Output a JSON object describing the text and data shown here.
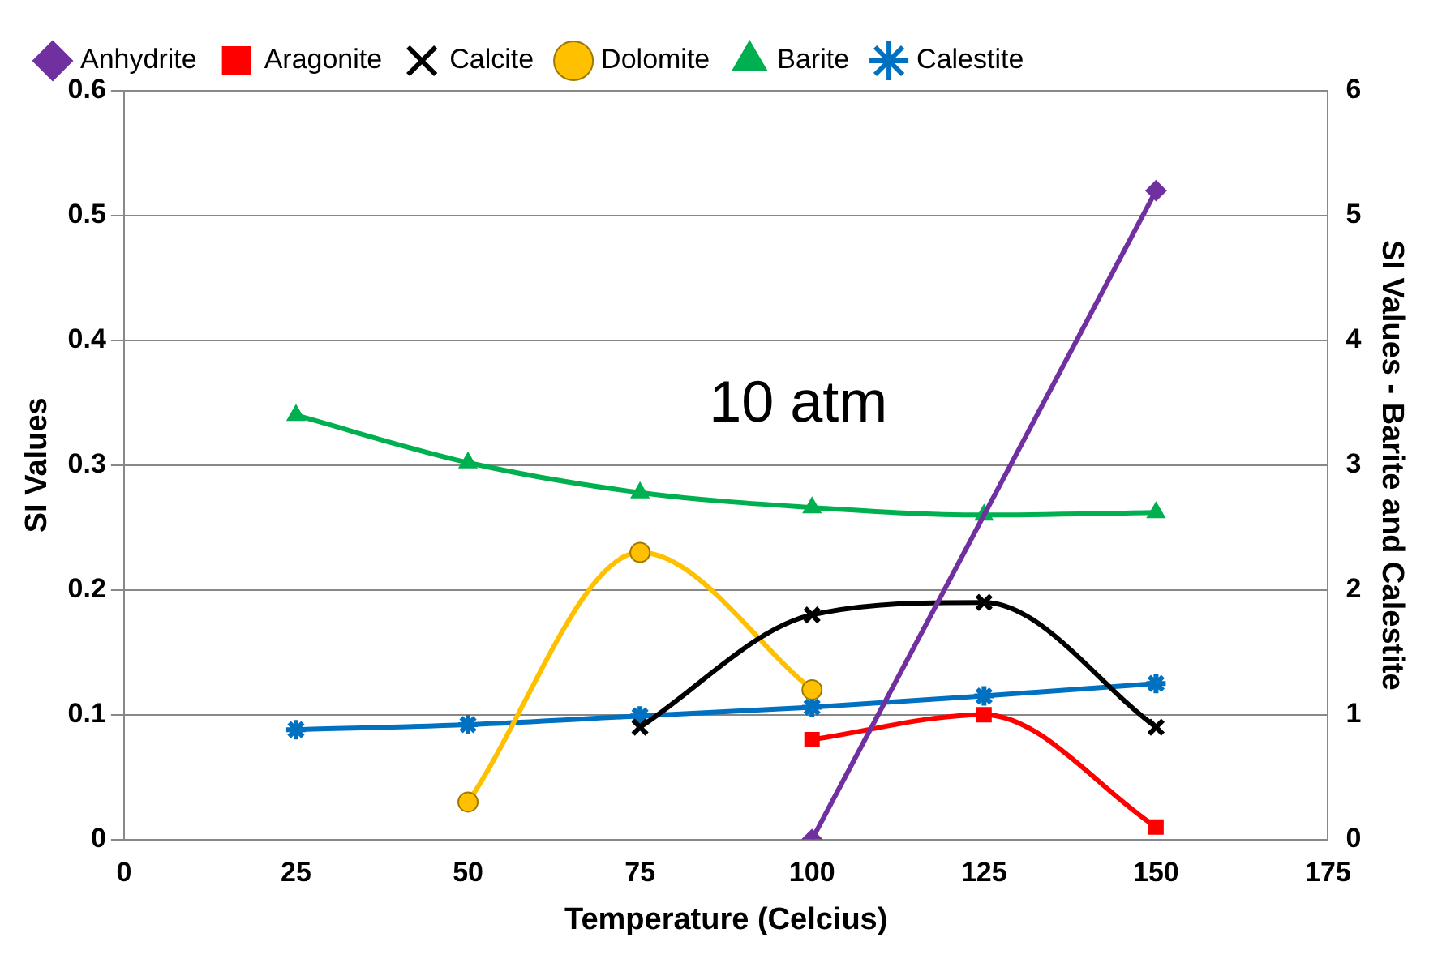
{
  "chart_data": {
    "type": "line",
    "xlabel": "Temperature (Celcius)",
    "ylabel": "SI Values",
    "y2label": "SI Values - Barite and Calestite",
    "xlim": [
      0,
      175
    ],
    "xticks": [
      0,
      25,
      50,
      75,
      100,
      125,
      150,
      175
    ],
    "ylim": [
      0,
      0.6
    ],
    "yticks": [
      0,
      0.1,
      0.2,
      0.3,
      0.4,
      0.5,
      0.6
    ],
    "y2lim": [
      0,
      6
    ],
    "y2ticks": [
      0,
      1,
      2,
      3,
      4,
      5,
      6
    ],
    "grid": "y",
    "legend": "top left",
    "line_style": "solid",
    "annotations": [
      "10 atm"
    ],
    "series": [
      {
        "name": "Anhydrite",
        "color": "#7030a0",
        "marker": "diamond",
        "x": [
          100,
          150
        ],
        "values": [
          0,
          0.52
        ]
      },
      {
        "name": "Aragonite",
        "color": "#ff0000",
        "marker": "square",
        "x": [
          100,
          125,
          150
        ],
        "values": [
          0.08,
          0.1,
          0.01
        ]
      },
      {
        "name": "Calcite",
        "color": "#000000",
        "marker": "cross",
        "x": [
          75,
          100,
          125,
          150
        ],
        "values": [
          0.09,
          0.18,
          0.19,
          0.09
        ]
      },
      {
        "name": "Dolomite",
        "color": "#ffc000",
        "marker": "circle",
        "x": [
          50,
          75,
          100
        ],
        "values": [
          0.03,
          0.23,
          0.12
        ]
      },
      {
        "name": "Barite",
        "color": "#00b050",
        "marker": "triangle",
        "axis": "y2",
        "x": [
          25,
          50,
          75,
          100,
          125,
          150
        ],
        "values": [
          3.4,
          3.02,
          2.78,
          2.66,
          2.6,
          2.62
        ]
      },
      {
        "name": "Calestite",
        "color": "#0070c0",
        "marker": "cross",
        "axis": "y2",
        "x": [
          25,
          50,
          75,
          100,
          125,
          150
        ],
        "values": [
          0.88,
          0.92,
          0.99,
          1.06,
          1.15,
          1.25
        ]
      }
    ]
  }
}
